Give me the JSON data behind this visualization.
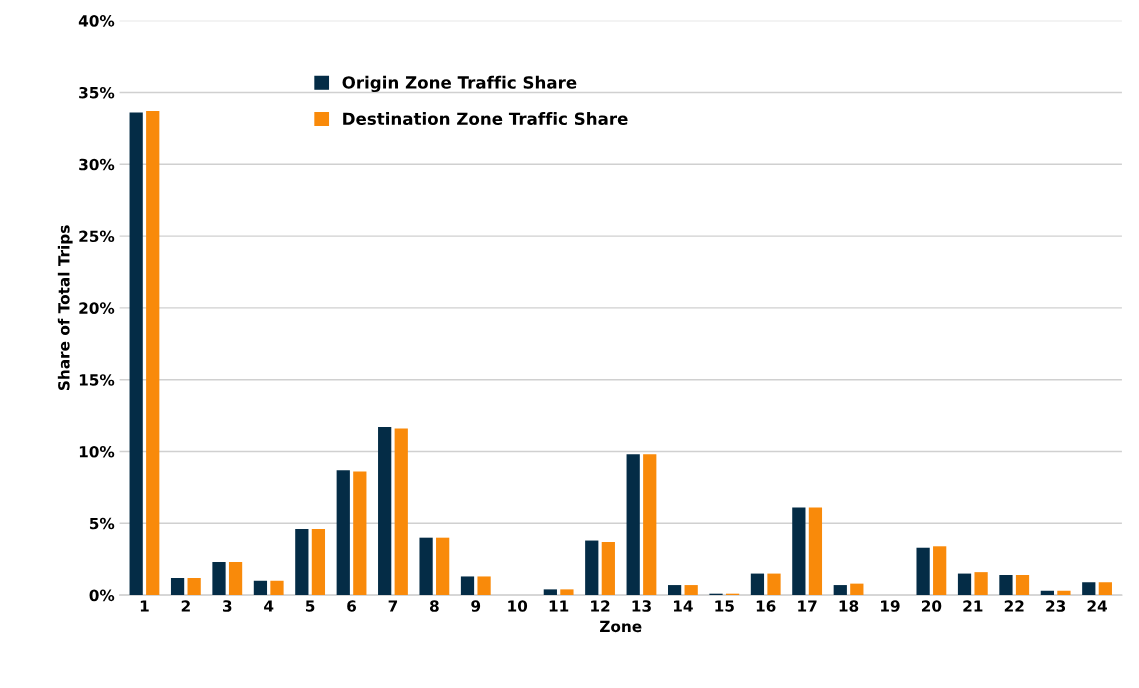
{
  "chart_data": {
    "type": "bar",
    "xlabel": "Zone",
    "ylabel": "Share of Total Trips",
    "categories": [
      "1",
      "2",
      "3",
      "4",
      "5",
      "6",
      "7",
      "8",
      "9",
      "10",
      "11",
      "12",
      "13",
      "14",
      "15",
      "16",
      "17",
      "18",
      "19",
      "20",
      "21",
      "22",
      "23",
      "24"
    ],
    "series": [
      {
        "name": "Origin Zone Traffic Share",
        "color": "#042c46",
        "values": [
          33.6,
          1.2,
          2.3,
          1.0,
          4.6,
          8.7,
          11.7,
          4.0,
          1.3,
          0,
          0.4,
          3.8,
          9.8,
          0.7,
          0.1,
          1.5,
          6.1,
          0.7,
          0,
          3.3,
          1.5,
          1.4,
          0.3,
          0.9
        ]
      },
      {
        "name": "Destination Zone Traffic Share",
        "color": "#f98a0a",
        "values": [
          33.7,
          1.2,
          2.3,
          1.0,
          4.6,
          8.6,
          11.6,
          4.0,
          1.3,
          0,
          0.4,
          3.7,
          9.8,
          0.7,
          0.1,
          1.5,
          6.1,
          0.8,
          0,
          3.4,
          1.6,
          1.4,
          0.3,
          0.9
        ]
      }
    ],
    "ylim": [
      0,
      40
    ],
    "yticks": [
      {
        "value": 0,
        "label": "0%"
      },
      {
        "value": 5,
        "label": "5%"
      },
      {
        "value": 10,
        "label": "10%"
      },
      {
        "value": 15,
        "label": "15%"
      },
      {
        "value": 20,
        "label": "20%"
      },
      {
        "value": 25,
        "label": "25%"
      },
      {
        "value": 30,
        "label": "30%"
      },
      {
        "value": 35,
        "label": "35%"
      },
      {
        "value": 40,
        "label": "40%"
      }
    ],
    "grid": "y",
    "legend": "top"
  }
}
